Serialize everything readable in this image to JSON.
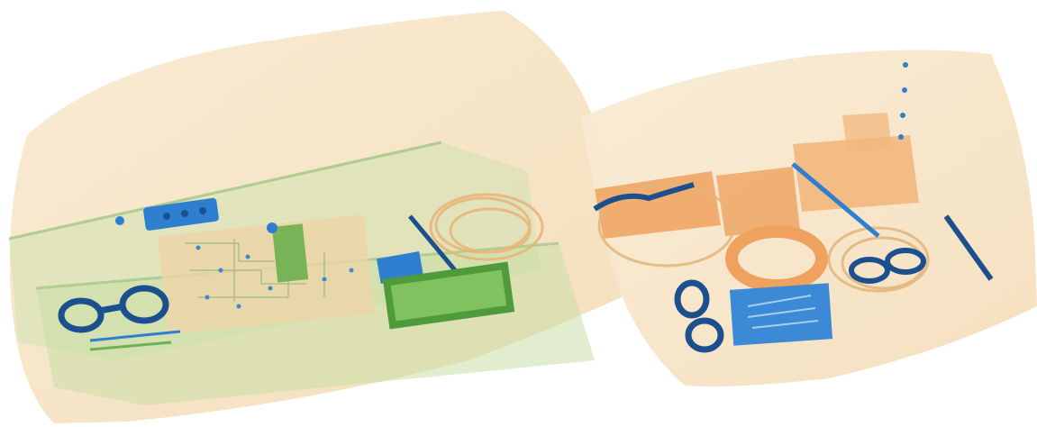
{
  "scene": {
    "kind": "x-ray-baggage-scan",
    "colors": {
      "background": "#ffffff",
      "organic_light": "#f6e3c4",
      "organic_mid": "#efc48a",
      "organic_dense": "#eea25e",
      "mixed_green": "#b8d69a",
      "mixed_green_dark": "#6fb052",
      "metal_blue": "#2f7fd0",
      "metal_dark": "#1c4f8e",
      "wire_orange": "#e7b67a"
    },
    "left_bag": {
      "contents": [
        "circuit-board",
        "battery-pack",
        "coiled-cable",
        "scissors-handle-icon",
        "power-bank",
        "key-chip-strip"
      ]
    },
    "right_bag": {
      "contents": [
        "scissors-handle-icon",
        "coiled-cable",
        "tape-roll",
        "tool-case",
        "sunglasses",
        "pen-knife"
      ]
    }
  }
}
